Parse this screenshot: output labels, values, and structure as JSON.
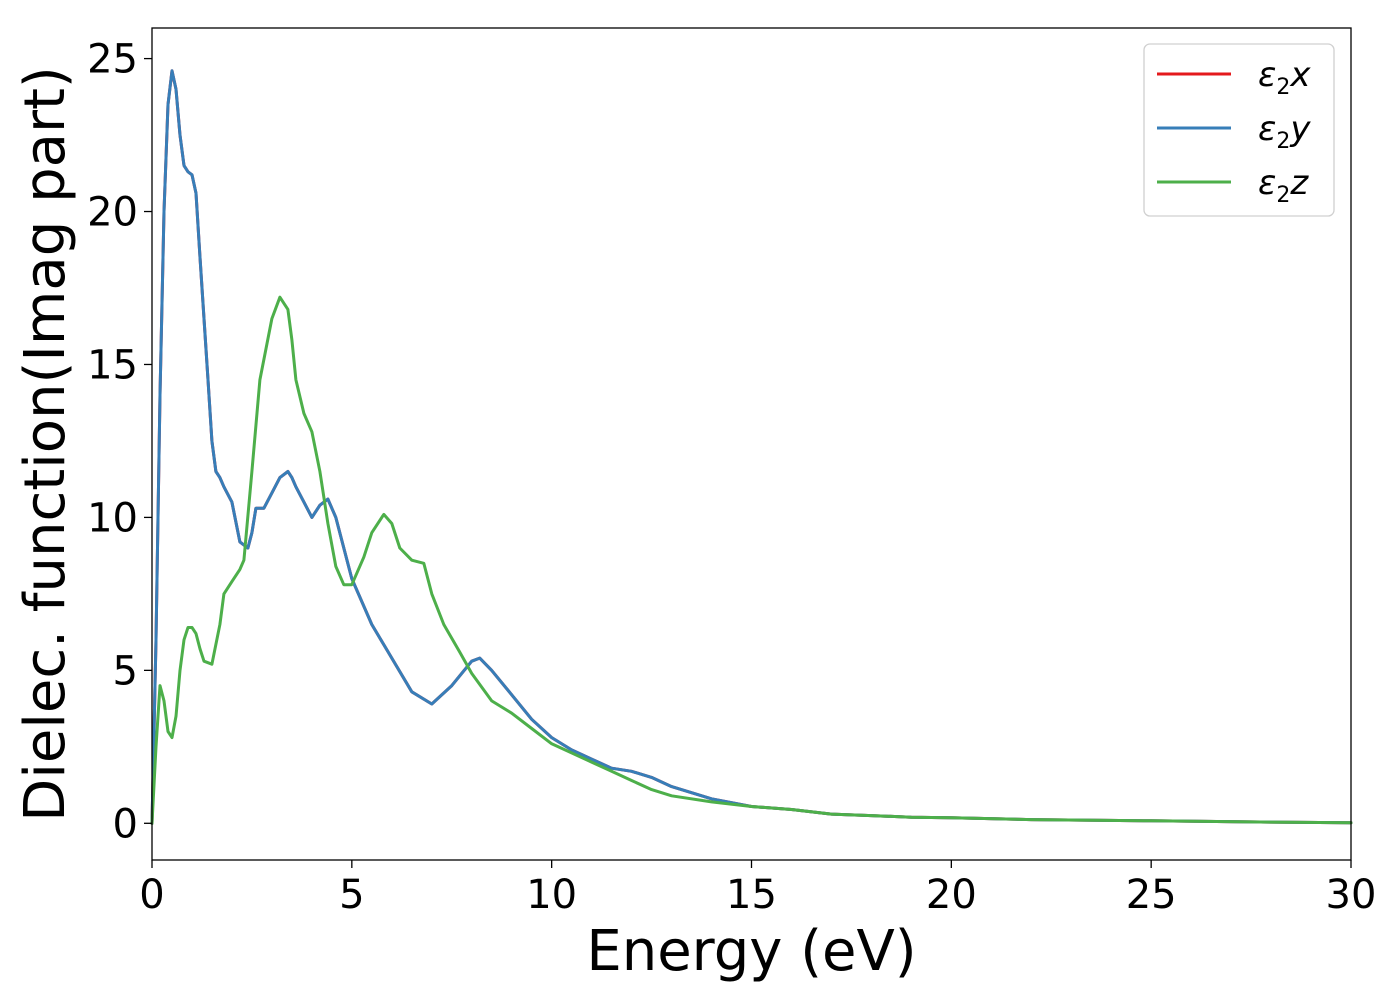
{
  "chart_data": {
    "type": "line",
    "title": "",
    "xlabel": "Energy (eV)",
    "ylabel": "Dielec. function(Imag part)",
    "xlim": [
      0,
      30
    ],
    "ylim": [
      -1.2,
      26
    ],
    "xticks": [
      0,
      5,
      10,
      15,
      20,
      25,
      30
    ],
    "yticks": [
      0,
      5,
      10,
      15,
      20,
      25
    ],
    "grid": false,
    "legend_position": "top-right",
    "series": [
      {
        "name": "ε2x",
        "prefix": "ε",
        "sub": "2",
        "suffix": "x",
        "color": "#e41a1c",
        "x": [
          0,
          0.1,
          0.2,
          0.3,
          0.4,
          0.5,
          0.6,
          0.7,
          0.8,
          0.9,
          1.0,
          1.1,
          1.2,
          1.3,
          1.4,
          1.5,
          1.6,
          1.7,
          1.8,
          2.0,
          2.2,
          2.4,
          2.5,
          2.6,
          2.8,
          3.0,
          3.2,
          3.4,
          3.5,
          3.6,
          3.8,
          4.0,
          4.2,
          4.4,
          4.6,
          4.8,
          5.0,
          5.5,
          6.0,
          6.5,
          7.0,
          7.5,
          8.0,
          8.2,
          8.5,
          9.0,
          9.5,
          10.0,
          10.5,
          11.0,
          11.5,
          12.0,
          12.5,
          13.0,
          14.0,
          15.0,
          16.0,
          17.0,
          18.0,
          19.0,
          20.0,
          22.0,
          25.0,
          28.0,
          30.0
        ],
        "y": [
          0,
          6,
          14,
          20,
          23.5,
          24.6,
          24.0,
          22.5,
          21.5,
          21.3,
          21.2,
          20.6,
          18.5,
          16.5,
          14.5,
          12.5,
          11.5,
          11.3,
          11.0,
          10.5,
          9.2,
          9.0,
          9.5,
          10.3,
          10.3,
          10.8,
          11.3,
          11.5,
          11.3,
          11.0,
          10.5,
          10.0,
          10.4,
          10.6,
          10.0,
          9.0,
          8.0,
          6.5,
          5.4,
          4.3,
          3.9,
          4.5,
          5.3,
          5.4,
          5.0,
          4.2,
          3.4,
          2.8,
          2.4,
          2.1,
          1.8,
          1.7,
          1.5,
          1.2,
          0.8,
          0.55,
          0.45,
          0.3,
          0.25,
          0.2,
          0.18,
          0.12,
          0.08,
          0.04,
          0.02
        ]
      },
      {
        "name": "ε2y",
        "prefix": "ε",
        "sub": "2",
        "suffix": "y",
        "color": "#377eb8",
        "x": [
          0,
          0.1,
          0.2,
          0.3,
          0.4,
          0.5,
          0.6,
          0.7,
          0.8,
          0.9,
          1.0,
          1.1,
          1.2,
          1.3,
          1.4,
          1.5,
          1.6,
          1.7,
          1.8,
          2.0,
          2.2,
          2.4,
          2.5,
          2.6,
          2.8,
          3.0,
          3.2,
          3.4,
          3.5,
          3.6,
          3.8,
          4.0,
          4.2,
          4.4,
          4.6,
          4.8,
          5.0,
          5.5,
          6.0,
          6.5,
          7.0,
          7.5,
          8.0,
          8.2,
          8.5,
          9.0,
          9.5,
          10.0,
          10.5,
          11.0,
          11.5,
          12.0,
          12.5,
          13.0,
          14.0,
          15.0,
          16.0,
          17.0,
          18.0,
          19.0,
          20.0,
          22.0,
          25.0,
          28.0,
          30.0
        ],
        "y": [
          0,
          6,
          14,
          20,
          23.5,
          24.6,
          24.0,
          22.5,
          21.5,
          21.3,
          21.2,
          20.6,
          18.5,
          16.5,
          14.5,
          12.5,
          11.5,
          11.3,
          11.0,
          10.5,
          9.2,
          9.0,
          9.5,
          10.3,
          10.3,
          10.8,
          11.3,
          11.5,
          11.3,
          11.0,
          10.5,
          10.0,
          10.4,
          10.6,
          10.0,
          9.0,
          8.0,
          6.5,
          5.4,
          4.3,
          3.9,
          4.5,
          5.3,
          5.4,
          5.0,
          4.2,
          3.4,
          2.8,
          2.4,
          2.1,
          1.8,
          1.7,
          1.5,
          1.2,
          0.8,
          0.55,
          0.45,
          0.3,
          0.25,
          0.2,
          0.18,
          0.12,
          0.08,
          0.04,
          0.02
        ]
      },
      {
        "name": "ε2z",
        "prefix": "ε",
        "sub": "2",
        "suffix": "z",
        "color": "#4daf4a",
        "x": [
          0,
          0.1,
          0.2,
          0.3,
          0.4,
          0.5,
          0.6,
          0.7,
          0.8,
          0.9,
          1.0,
          1.1,
          1.2,
          1.3,
          1.5,
          1.7,
          1.8,
          2.0,
          2.2,
          2.3,
          2.5,
          2.7,
          3.0,
          3.2,
          3.4,
          3.5,
          3.6,
          3.8,
          4.0,
          4.2,
          4.4,
          4.6,
          4.8,
          5.0,
          5.3,
          5.5,
          5.8,
          6.0,
          6.2,
          6.5,
          6.8,
          7.0,
          7.3,
          7.7,
          8.0,
          8.5,
          9.0,
          9.5,
          10.0,
          10.5,
          11.0,
          11.5,
          12.0,
          12.5,
          13.0,
          14.0,
          15.0,
          16.0,
          17.0,
          18.0,
          19.0,
          20.0,
          22.0,
          25.0,
          28.0,
          30.0
        ],
        "y": [
          0,
          2.5,
          4.5,
          4.0,
          3.0,
          2.8,
          3.5,
          5.0,
          6.0,
          6.4,
          6.4,
          6.2,
          5.7,
          5.3,
          5.2,
          6.5,
          7.5,
          7.9,
          8.3,
          8.6,
          11.5,
          14.5,
          16.5,
          17.2,
          16.8,
          15.8,
          14.5,
          13.4,
          12.8,
          11.5,
          9.8,
          8.4,
          7.8,
          7.8,
          8.7,
          9.5,
          10.1,
          9.8,
          9.0,
          8.6,
          8.5,
          7.5,
          6.5,
          5.6,
          4.9,
          4.0,
          3.6,
          3.1,
          2.6,
          2.3,
          2.0,
          1.7,
          1.4,
          1.1,
          0.9,
          0.7,
          0.55,
          0.45,
          0.3,
          0.25,
          0.2,
          0.18,
          0.12,
          0.08,
          0.04,
          0.02
        ]
      }
    ]
  }
}
